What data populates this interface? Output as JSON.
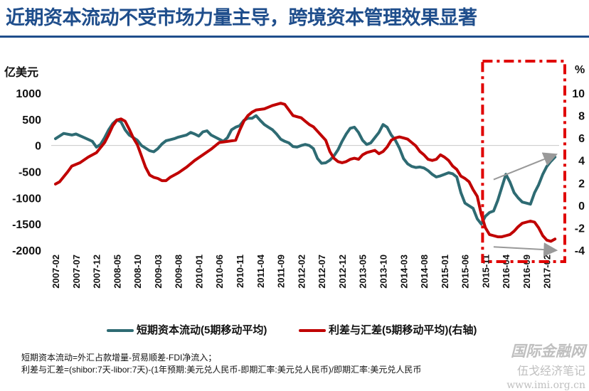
{
  "title": "近期资本流动不受市场力量主导，跨境资本管理效果显著",
  "colors": {
    "title": "#1f4e8c",
    "capital_flow": "#2e6b73",
    "rate_fx_spread": "#c00000",
    "highlight_box": "#e00000",
    "arrows": "#999999"
  },
  "legend": {
    "series1": "短期资本流动(5期移动平均)",
    "series2": "利差与汇差(5期移动平均)(右轴)"
  },
  "notes": [
    "短期资本流动=外汇占款增量-贸易顺差-FDI净流入；",
    "利差与汇差=(shibor:7天-libor:7天)-(1年预期:美元兑人民币-即期汇率:美元兑人民币)/即期汇率:美元兑人民币"
  ],
  "watermark": {
    "logo": "国际金融网",
    "tag": "伍戈经济笔记",
    "url": "www.imi.org.cn"
  },
  "chart_data": {
    "type": "line",
    "title": "",
    "ylabel": "亿美元",
    "y2label": "%",
    "ylim": [
      -2000,
      1000
    ],
    "y2lim": [
      -4,
      10
    ],
    "yticks": [
      1000,
      500,
      0,
      -500,
      -1000,
      -1500,
      -2000
    ],
    "y2ticks": [
      10,
      8,
      6,
      4,
      2,
      0,
      -2,
      -4
    ],
    "grid": false,
    "zero_line": true,
    "legend_position": "bottom",
    "x_start": "2007-02",
    "x_end": "2017-05",
    "xticks": [
      "2007-02",
      "2007-07",
      "2007-12",
      "2008-05",
      "2008-10",
      "2009-03",
      "2009-08",
      "2010-01",
      "2010-06",
      "2010-11",
      "2011-04",
      "2011-09",
      "2012-02",
      "2012-07",
      "2012-12",
      "2013-05",
      "2013-10",
      "2014-03",
      "2014-08",
      "2015-01",
      "2015-06",
      "2015-11",
      "2016-04",
      "2016-09",
      "2017-02"
    ],
    "series": [
      {
        "name": "短期资本流动(5期移动平均)",
        "axis": "left",
        "points": [
          [
            "2007-02",
            130
          ],
          [
            "2007-04",
            230
          ],
          [
            "2007-06",
            200
          ],
          [
            "2007-07",
            220
          ],
          [
            "2007-09",
            150
          ],
          [
            "2007-11",
            80
          ],
          [
            "2007-12",
            -30
          ],
          [
            "2008-01",
            20
          ],
          [
            "2008-02",
            150
          ],
          [
            "2008-03",
            300
          ],
          [
            "2008-04",
            420
          ],
          [
            "2008-05",
            490
          ],
          [
            "2008-06",
            450
          ],
          [
            "2008-07",
            300
          ],
          [
            "2008-08",
            200
          ],
          [
            "2008-09",
            150
          ],
          [
            "2008-10",
            100
          ],
          [
            "2008-11",
            0
          ],
          [
            "2008-12",
            -50
          ],
          [
            "2009-01",
            -100
          ],
          [
            "2009-02",
            -120
          ],
          [
            "2009-03",
            -60
          ],
          [
            "2009-04",
            30
          ],
          [
            "2009-05",
            90
          ],
          [
            "2009-06",
            110
          ],
          [
            "2009-07",
            130
          ],
          [
            "2009-08",
            160
          ],
          [
            "2009-09",
            180
          ],
          [
            "2009-10",
            200
          ],
          [
            "2009-11",
            250
          ],
          [
            "2009-12",
            220
          ],
          [
            "2010-01",
            180
          ],
          [
            "2010-02",
            260
          ],
          [
            "2010-03",
            280
          ],
          [
            "2010-04",
            200
          ],
          [
            "2010-05",
            160
          ],
          [
            "2010-06",
            120
          ],
          [
            "2010-07",
            80
          ],
          [
            "2010-08",
            150
          ],
          [
            "2010-09",
            300
          ],
          [
            "2010-10",
            350
          ],
          [
            "2010-11",
            380
          ],
          [
            "2010-12",
            480
          ],
          [
            "2011-01",
            520
          ],
          [
            "2011-02",
            520
          ],
          [
            "2011-03",
            570
          ],
          [
            "2011-04",
            480
          ],
          [
            "2011-05",
            400
          ],
          [
            "2011-06",
            350
          ],
          [
            "2011-07",
            300
          ],
          [
            "2011-08",
            220
          ],
          [
            "2011-09",
            120
          ],
          [
            "2011-10",
            80
          ],
          [
            "2011-11",
            50
          ],
          [
            "2011-12",
            -20
          ],
          [
            "2012-01",
            -30
          ],
          [
            "2012-02",
            0
          ],
          [
            "2012-03",
            20
          ],
          [
            "2012-04",
            0
          ],
          [
            "2012-05",
            -60
          ],
          [
            "2012-06",
            -250
          ],
          [
            "2012-07",
            -340
          ],
          [
            "2012-08",
            -330
          ],
          [
            "2012-09",
            -280
          ],
          [
            "2012-10",
            -200
          ],
          [
            "2012-11",
            -80
          ],
          [
            "2012-12",
            80
          ],
          [
            "2013-01",
            220
          ],
          [
            "2013-02",
            330
          ],
          [
            "2013-03",
            350
          ],
          [
            "2013-04",
            250
          ],
          [
            "2013-05",
            100
          ],
          [
            "2013-06",
            20
          ],
          [
            "2013-07",
            50
          ],
          [
            "2013-08",
            150
          ],
          [
            "2013-09",
            250
          ],
          [
            "2013-10",
            400
          ],
          [
            "2013-11",
            350
          ],
          [
            "2013-12",
            200
          ],
          [
            "2014-01",
            100
          ],
          [
            "2014-02",
            -50
          ],
          [
            "2014-03",
            -250
          ],
          [
            "2014-04",
            -350
          ],
          [
            "2014-05",
            -400
          ],
          [
            "2014-06",
            -420
          ],
          [
            "2014-07",
            -410
          ],
          [
            "2014-08",
            -430
          ],
          [
            "2014-09",
            -480
          ],
          [
            "2014-10",
            -550
          ],
          [
            "2014-11",
            -600
          ],
          [
            "2014-12",
            -580
          ],
          [
            "2015-01",
            -550
          ],
          [
            "2015-02",
            -520
          ],
          [
            "2015-03",
            -540
          ],
          [
            "2015-04",
            -600
          ],
          [
            "2015-05",
            -900
          ],
          [
            "2015-06",
            -1100
          ],
          [
            "2015-07",
            -1150
          ],
          [
            "2015-08",
            -1200
          ],
          [
            "2015-09",
            -1400
          ],
          [
            "2015-10",
            -1500
          ],
          [
            "2015-11",
            -1350
          ],
          [
            "2015-12",
            -1280
          ],
          [
            "2016-01",
            -1250
          ],
          [
            "2016-02",
            -1050
          ],
          [
            "2016-03",
            -800
          ],
          [
            "2016-04",
            -550
          ],
          [
            "2016-05",
            -700
          ],
          [
            "2016-06",
            -900
          ],
          [
            "2016-07",
            -1000
          ],
          [
            "2016-08",
            -1080
          ],
          [
            "2016-09",
            -1100
          ],
          [
            "2016-10",
            -1120
          ],
          [
            "2016-11",
            -900
          ],
          [
            "2016-12",
            -750
          ],
          [
            "2017-01",
            -550
          ],
          [
            "2017-02",
            -400
          ],
          [
            "2017-03",
            -300
          ],
          [
            "2017-04",
            -220
          ]
        ]
      },
      {
        "name": "利差与汇差(5期移动平均)(右轴)",
        "axis": "right",
        "points": [
          [
            "2007-02",
            1.9
          ],
          [
            "2007-03",
            2.1
          ],
          [
            "2007-05",
            3.0
          ],
          [
            "2007-06",
            3.5
          ],
          [
            "2007-08",
            3.8
          ],
          [
            "2007-10",
            4.3
          ],
          [
            "2007-12",
            4.7
          ],
          [
            "2008-02",
            5.6
          ],
          [
            "2008-03",
            6.3
          ],
          [
            "2008-04",
            7.1
          ],
          [
            "2008-05",
            7.6
          ],
          [
            "2008-06",
            7.7
          ],
          [
            "2008-07",
            7.5
          ],
          [
            "2008-08",
            6.8
          ],
          [
            "2008-09",
            6.0
          ],
          [
            "2008-10",
            5.4
          ],
          [
            "2008-11",
            4.4
          ],
          [
            "2008-12",
            3.4
          ],
          [
            "2009-01",
            2.7
          ],
          [
            "2009-02",
            2.5
          ],
          [
            "2009-03",
            2.4
          ],
          [
            "2009-04",
            2.2
          ],
          [
            "2009-05",
            2.2
          ],
          [
            "2009-06",
            2.5
          ],
          [
            "2009-08",
            2.9
          ],
          [
            "2009-10",
            3.4
          ],
          [
            "2009-12",
            4.0
          ],
          [
            "2010-02",
            4.5
          ],
          [
            "2010-04",
            5.0
          ],
          [
            "2010-06",
            5.6
          ],
          [
            "2010-08",
            5.7
          ],
          [
            "2010-10",
            5.8
          ],
          [
            "2010-11",
            6.7
          ],
          [
            "2010-12",
            7.5
          ],
          [
            "2011-01",
            8.0
          ],
          [
            "2011-02",
            8.3
          ],
          [
            "2011-03",
            8.5
          ],
          [
            "2011-05",
            8.6
          ],
          [
            "2011-07",
            8.9
          ],
          [
            "2011-09",
            9.1
          ],
          [
            "2011-10",
            9.0
          ],
          [
            "2011-11",
            8.5
          ],
          [
            "2011-12",
            8.0
          ],
          [
            "2012-01",
            7.9
          ],
          [
            "2012-02",
            7.8
          ],
          [
            "2012-03",
            7.5
          ],
          [
            "2012-04",
            7.2
          ],
          [
            "2012-05",
            7.0
          ],
          [
            "2012-06",
            6.6
          ],
          [
            "2012-07",
            6.2
          ],
          [
            "2012-08",
            5.8
          ],
          [
            "2012-09",
            4.8
          ],
          [
            "2012-10",
            4.2
          ],
          [
            "2012-11",
            3.9
          ],
          [
            "2012-12",
            3.8
          ],
          [
            "2013-01",
            3.9
          ],
          [
            "2013-02",
            4.1
          ],
          [
            "2013-03",
            4.2
          ],
          [
            "2013-04",
            4.1
          ],
          [
            "2013-05",
            4.5
          ],
          [
            "2013-06",
            4.7
          ],
          [
            "2013-07",
            4.8
          ],
          [
            "2013-08",
            4.9
          ],
          [
            "2013-09",
            4.6
          ],
          [
            "2013-10",
            4.8
          ],
          [
            "2013-11",
            5.2
          ],
          [
            "2013-12",
            5.8
          ],
          [
            "2014-01",
            6.0
          ],
          [
            "2014-02",
            6.1
          ],
          [
            "2014-03",
            6.0
          ],
          [
            "2014-04",
            5.9
          ],
          [
            "2014-05",
            5.6
          ],
          [
            "2014-06",
            5.3
          ],
          [
            "2014-07",
            4.8
          ],
          [
            "2014-08",
            4.5
          ],
          [
            "2014-09",
            4.1
          ],
          [
            "2014-10",
            4.0
          ],
          [
            "2014-11",
            4.1
          ],
          [
            "2014-12",
            4.5
          ],
          [
            "2015-01",
            4.3
          ],
          [
            "2015-02",
            4.0
          ],
          [
            "2015-03",
            3.5
          ],
          [
            "2015-04",
            3.2
          ],
          [
            "2015-05",
            2.6
          ],
          [
            "2015-06",
            2.4
          ],
          [
            "2015-07",
            2.1
          ],
          [
            "2015-08",
            1.4
          ],
          [
            "2015-09",
            0.8
          ],
          [
            "2015-10",
            -0.8
          ],
          [
            "2015-11",
            -2.0
          ],
          [
            "2015-12",
            -2.6
          ],
          [
            "2016-01",
            -2.7
          ],
          [
            "2016-02",
            -2.8
          ],
          [
            "2016-03",
            -2.8
          ],
          [
            "2016-04",
            -2.7
          ],
          [
            "2016-05",
            -2.6
          ],
          [
            "2016-06",
            -2.3
          ],
          [
            "2016-07",
            -1.9
          ],
          [
            "2016-08",
            -1.6
          ],
          [
            "2016-09",
            -1.5
          ],
          [
            "2016-10",
            -1.4
          ],
          [
            "2016-11",
            -1.5
          ],
          [
            "2016-12",
            -2.0
          ],
          [
            "2017-01",
            -2.7
          ],
          [
            "2017-02",
            -3.1
          ],
          [
            "2017-03",
            -3.2
          ],
          [
            "2017-04",
            -3.0
          ]
        ]
      }
    ],
    "annotations": [
      {
        "type": "dashed-box",
        "from": "2015-11",
        "to": "2017-05"
      },
      {
        "type": "arrow",
        "axis": "right",
        "from": [
          "2016-01",
          2.3
        ],
        "to": [
          "2017-04",
          4.5
        ]
      },
      {
        "type": "arrow",
        "axis": "right",
        "from": [
          "2016-01",
          -3.7
        ],
        "to": [
          "2017-04",
          -4.0
        ]
      }
    ]
  }
}
